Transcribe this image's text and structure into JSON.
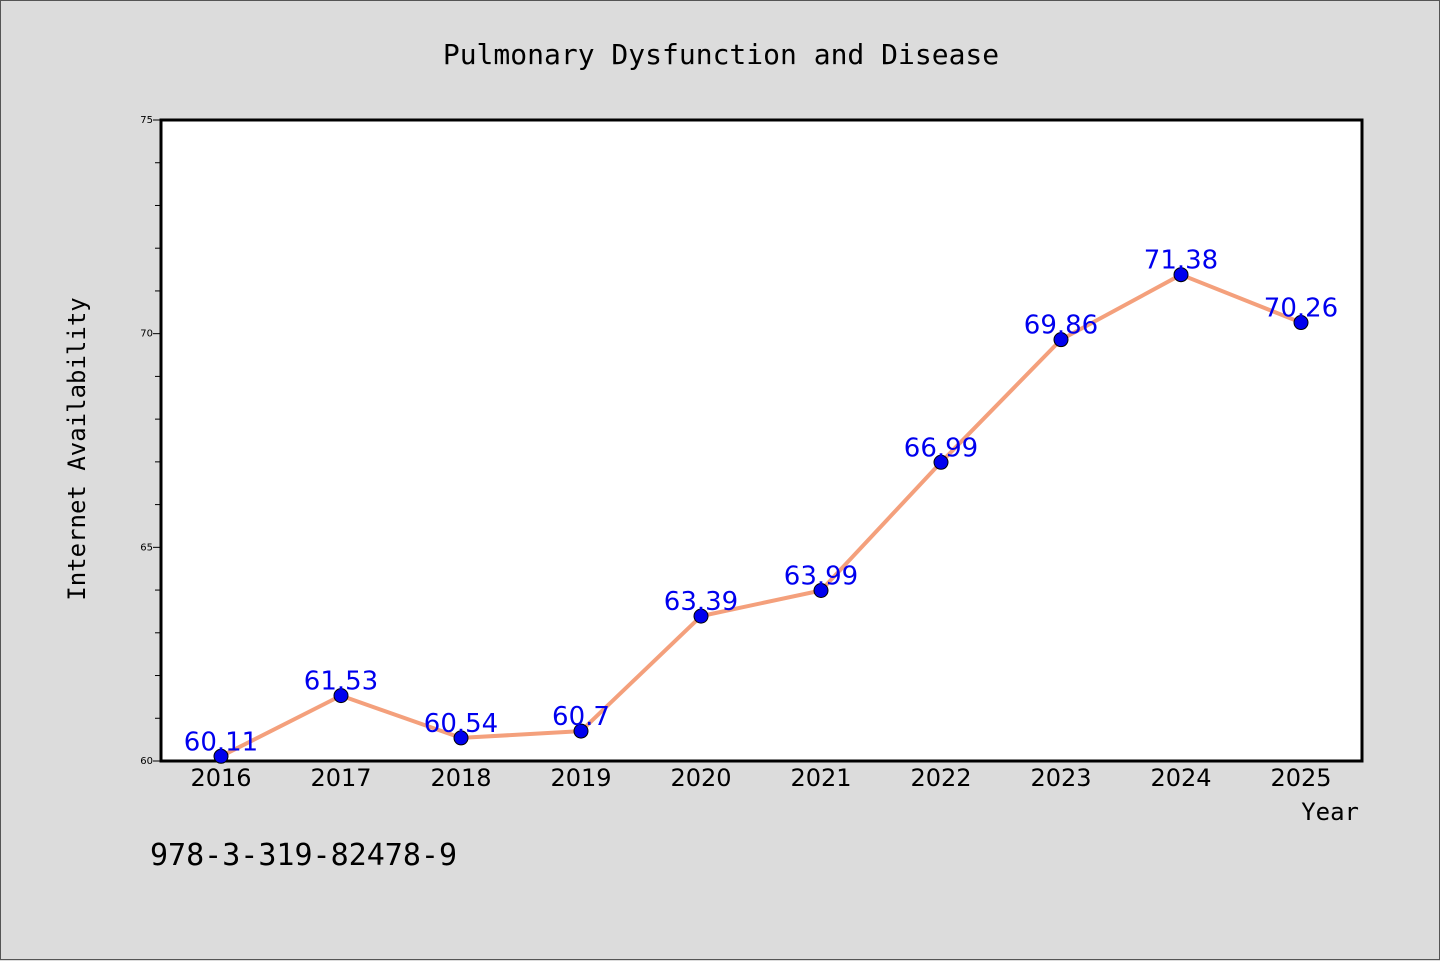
{
  "chart_data": {
    "type": "line",
    "title": "Pulmonary Dysfunction and Disease",
    "xlabel": "Year",
    "ylabel": "Internet Availability",
    "categories": [
      "2016",
      "2017",
      "2018",
      "2019",
      "2020",
      "2021",
      "2022",
      "2023",
      "2024",
      "2025"
    ],
    "values": [
      60.11,
      61.53,
      60.54,
      60.7,
      63.39,
      63.99,
      66.99,
      69.86,
      71.38,
      70.26
    ],
    "data_labels": [
      "60.11",
      "61.53",
      "60.54",
      "60.7",
      "63.39",
      "63.99",
      "66.99",
      "69.86",
      "71.38",
      "70.26"
    ],
    "ylim": [
      60,
      75
    ],
    "yticks": [
      "60",
      "65",
      "70",
      "75"
    ],
    "grid": false,
    "legend": "none",
    "line_color": "#f4a07c",
    "marker_color": "#0000ee",
    "label_color": "#0000ee"
  },
  "footer": {
    "isbn": "978-3-319-82478-9"
  },
  "colors": {
    "background": "#dcdcdc",
    "plot_background": "#ffffff"
  }
}
